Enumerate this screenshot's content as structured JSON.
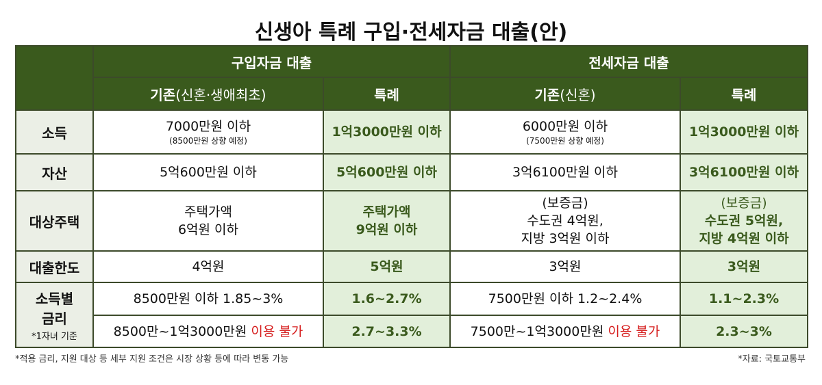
{
  "title": "신생아 특례 구입·전세자금 대출(안)",
  "headers": {
    "purchase": "구입자금 대출",
    "jeonse": "전세자금 대출",
    "purchase_base_bold": "기존",
    "purchase_base_rest": "(신혼·생애최초)",
    "special": "특례",
    "jeonse_base_bold": "기존",
    "jeonse_base_rest": "(신혼)"
  },
  "rows": {
    "income": {
      "label": "소득",
      "purchase_base": "7000만원 이하",
      "purchase_base_note": "(8500만원 상향 예정)",
      "purchase_special": "1억3000만원 이하",
      "jeonse_base": "6000만원 이하",
      "jeonse_base_note": "(7500만원 상향 예정)",
      "jeonse_special": "1억3000만원 이하"
    },
    "assets": {
      "label": "자산",
      "purchase_base": "5억600만원 이하",
      "purchase_special": "5억600만원 이하",
      "jeonse_base": "3억6100만원 이하",
      "jeonse_special": "3억6100만원 이하"
    },
    "housing": {
      "label": "대상주택",
      "purchase_base_1": "주택가액",
      "purchase_base_2": "6억원 이하",
      "purchase_special_1": "주택가액",
      "purchase_special_2": "9억원 이하",
      "jeonse_base_1": "(보증금)",
      "jeonse_base_2": "수도권 4억원,",
      "jeonse_base_3": "지방 3억원 이하",
      "jeonse_special_1": "(보증금)",
      "jeonse_special_2": "수도권 5억원,",
      "jeonse_special_3": "지방 4억원 이하"
    },
    "limit": {
      "label": "대출한도",
      "purchase_base": "4억원",
      "purchase_special": "5억원",
      "jeonse_base": "3억원",
      "jeonse_special": "3억원"
    },
    "rate": {
      "label_1": "소득별",
      "label_2": "금리",
      "label_note": "*1자녀 기준",
      "r1_purchase_base": "8500만원 이하 1.85~3%",
      "r1_purchase_special": "1.6~2.7%",
      "r1_jeonse_base": "7500만원 이하 1.2~2.4%",
      "r1_jeonse_special": "1.1~2.3%",
      "r2_purchase_base_a": "8500만~1억3000만원 ",
      "r2_purchase_base_b": "이용 불가",
      "r2_purchase_special": "2.7~3.3%",
      "r2_jeonse_base_a": "7500만~1억3000만원 ",
      "r2_jeonse_base_b": "이용 불가",
      "r2_jeonse_special": "2.3~3%"
    }
  },
  "footnote_left": "*적용 금리, 지원 대상 등 세부 지원 조건은 시장 상황 등에 따라 변동 가능",
  "footnote_right": "*자료: 국토교통부",
  "colors": {
    "header_green": "#3a5a1d",
    "special_bg": "#e2efda",
    "row_header_bg": "#ebefe6",
    "unavailable_red": "#d61f1f"
  }
}
